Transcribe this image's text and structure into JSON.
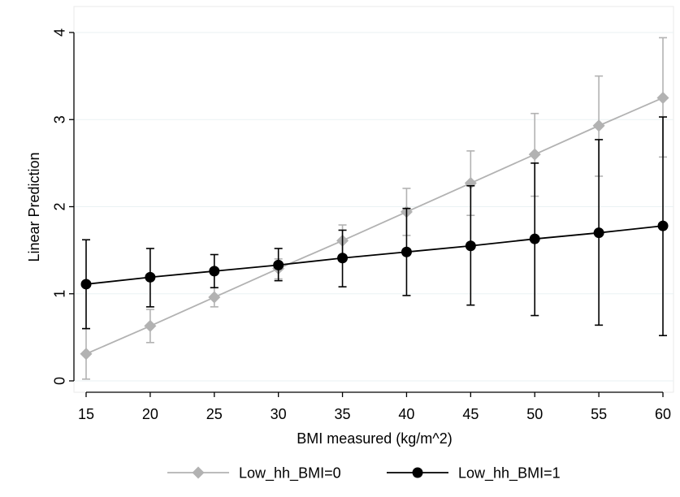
{
  "chart_data": {
    "type": "line",
    "title": "",
    "xlabel": "BMI measured (kg/m^2)",
    "ylabel": "Linear Prediction",
    "x": [
      15,
      20,
      25,
      30,
      35,
      40,
      45,
      50,
      55,
      60
    ],
    "xticks": [
      "15",
      "20",
      "25",
      "30",
      "35",
      "40",
      "45",
      "50",
      "55",
      "60"
    ],
    "yticks": [
      "0",
      "1",
      "2",
      "3",
      "4"
    ],
    "xlim": [
      15,
      60
    ],
    "ylim": [
      0,
      4
    ],
    "grid": true,
    "legend_position": "bottom",
    "series": [
      {
        "name": "Low_hh_BMI=0",
        "color": "#b2b2b2",
        "marker": "diamond",
        "values": [
          0.31,
          0.63,
          0.96,
          1.29,
          1.61,
          1.94,
          2.27,
          2.6,
          2.93,
          3.25
        ],
        "ci_low": [
          0.02,
          0.44,
          0.85,
          1.17,
          1.42,
          1.67,
          1.9,
          2.12,
          2.35,
          2.57
        ],
        "ci_high": [
          0.6,
          0.82,
          1.07,
          1.4,
          1.79,
          2.21,
          2.64,
          3.07,
          3.5,
          3.94
        ]
      },
      {
        "name": "Low_hh_BMI=1",
        "color": "#000000",
        "marker": "circle",
        "values": [
          1.11,
          1.19,
          1.26,
          1.33,
          1.41,
          1.48,
          1.55,
          1.63,
          1.7,
          1.78
        ],
        "ci_low": [
          0.6,
          0.85,
          1.07,
          1.15,
          1.08,
          0.98,
          0.87,
          0.75,
          0.64,
          0.52
        ],
        "ci_high": [
          1.62,
          1.52,
          1.45,
          1.52,
          1.73,
          1.98,
          2.24,
          2.5,
          2.77,
          3.03
        ]
      }
    ]
  }
}
